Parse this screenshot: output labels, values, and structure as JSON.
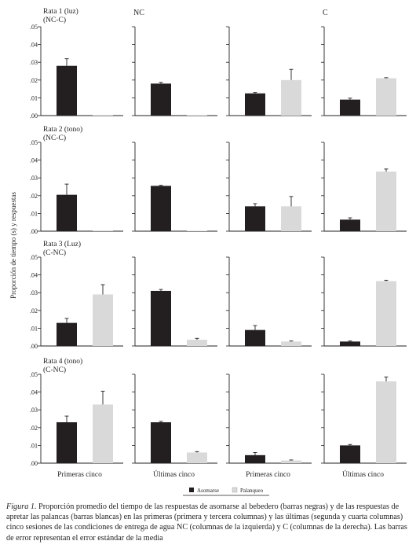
{
  "chart_data": {
    "type": "bar",
    "ylabel": "Proporción de tiempo (s) y respuestas",
    "ylim": [
      0,
      0.05
    ],
    "yticks": [
      ".00",
      ".01",
      ".02",
      ".03",
      ".04",
      ".05"
    ],
    "column_headers": [
      "",
      "NC",
      "",
      "C"
    ],
    "column_labels": [
      "Primeras cinco",
      "Últimas cinco",
      "Primeras cinco",
      "Últimas cinco"
    ],
    "series_names": [
      "Asomarse",
      "Palanqueo"
    ],
    "colors": [
      "#231f20",
      "#d9d9d9"
    ],
    "grid": false,
    "legend_position": "bottom-center",
    "rows": [
      {
        "title": "Rata 1 (luz)",
        "subtitle": "(NC-C)",
        "panels": [
          {
            "values": [
              0.028,
              0.0003
            ],
            "errors": [
              0.004,
              0
            ]
          },
          {
            "values": [
              0.018,
              0.0
            ],
            "errors": [
              0.0007,
              0
            ]
          },
          {
            "values": [
              0.0125,
              0.02
            ],
            "errors": [
              0.0005,
              0.006
            ]
          },
          {
            "values": [
              0.009,
              0.021
            ],
            "errors": [
              0.0008,
              0.0003
            ]
          }
        ]
      },
      {
        "title": "Rata 2 (tono)",
        "subtitle": "(NC-C)",
        "panels": [
          {
            "values": [
              0.0205,
              0.0004
            ],
            "errors": [
              0.006,
              0
            ]
          },
          {
            "values": [
              0.0255,
              0.0
            ],
            "errors": [
              0.0003,
              0
            ]
          },
          {
            "values": [
              0.014,
              0.014
            ],
            "errors": [
              0.0015,
              0.0055
            ]
          },
          {
            "values": [
              0.0065,
              0.0335
            ],
            "errors": [
              0.001,
              0.0015
            ]
          }
        ]
      },
      {
        "title": "Rata 3 (Luz)",
        "subtitle": "(C-NC)",
        "panels": [
          {
            "values": [
              0.013,
              0.029
            ],
            "errors": [
              0.0025,
              0.0055
            ]
          },
          {
            "values": [
              0.031,
              0.0035
            ],
            "errors": [
              0.0008,
              0.0008
            ]
          },
          {
            "values": [
              0.009,
              0.0025
            ],
            "errors": [
              0.0025,
              0.0003
            ]
          },
          {
            "values": [
              0.0025,
              0.0365
            ],
            "errors": [
              0.0003,
              0.0005
            ]
          }
        ]
      },
      {
        "title": "Rata 4 (tono)",
        "subtitle": "(C-NC)",
        "panels": [
          {
            "values": [
              0.023,
              0.033
            ],
            "errors": [
              0.0035,
              0.0075
            ]
          },
          {
            "values": [
              0.023,
              0.006
            ],
            "errors": [
              0.0005,
              0.0005
            ]
          },
          {
            "values": [
              0.0045,
              0.0015
            ],
            "errors": [
              0.0015,
              0.0003
            ]
          },
          {
            "values": [
              0.01,
              0.046
            ],
            "errors": [
              0.0005,
              0.0025
            ]
          }
        ]
      }
    ]
  },
  "caption": {
    "lead": "Figura 1.",
    "text": "Proporción promedio del tiempo de las respuestas de asomarse al bebedero (barras negras) y de las respuestas de apretar las palancas (barras blancas) en las primeras (primera y tercera columnas) y las últimas (segunda y cuarta columnas) cinco sesiones de las condiciones de entrega de agua NC (columnas de la izquierda) y C (columnas de la derecha). Las barras de error representan el error estándar de la media"
  }
}
